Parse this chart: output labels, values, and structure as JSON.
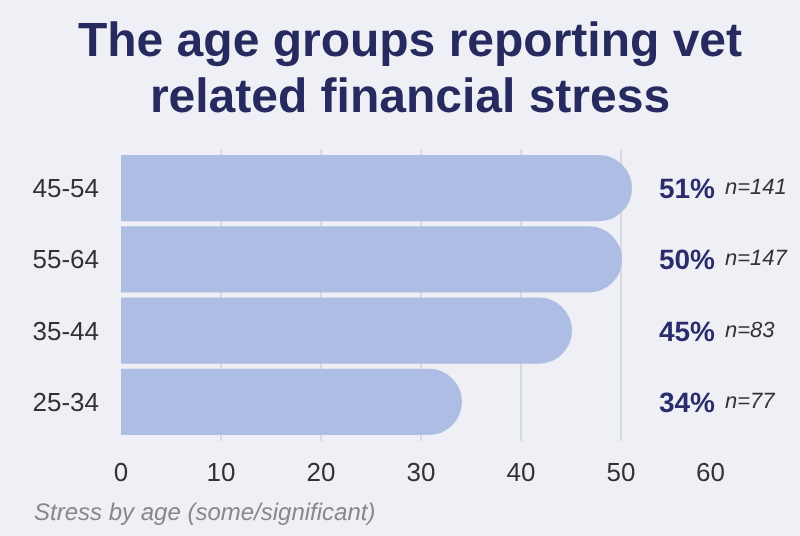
{
  "chart_data": {
    "type": "bar",
    "orientation": "horizontal",
    "title": "The age groups reporting vet related financial stress",
    "categories": [
      "45-54",
      "55-64",
      "35-44",
      "25-34"
    ],
    "values": [
      51,
      50,
      45,
      34
    ],
    "color": "#aebde3",
    "value_labels": [
      "51%",
      "50%",
      "45%",
      "34%"
    ],
    "annotations": [
      "n=141",
      "n=147",
      "n=83",
      "n=77",
      "Stress by age (some/significant)"
    ],
    "xlim": [
      0,
      60
    ],
    "xticks": [
      0,
      10,
      20,
      30,
      40,
      50,
      60
    ],
    "grid": "x"
  }
}
